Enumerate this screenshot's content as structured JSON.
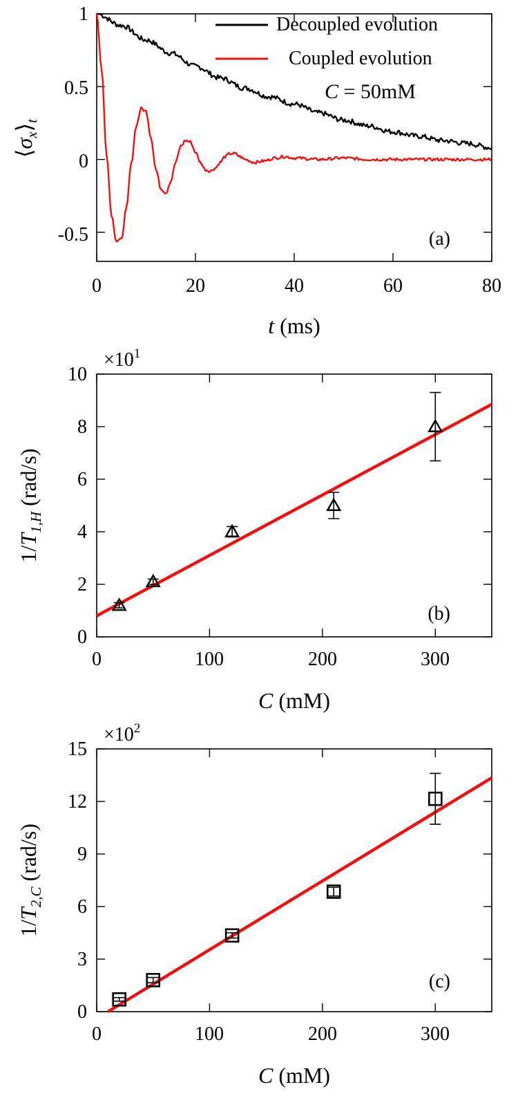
{
  "chart_data": [
    {
      "type": "line",
      "panel_label": "(a)",
      "xlabel_var": "t",
      "xlabel_unit": "(ms)",
      "ylabel_left": "⟨",
      "ylabel_var": "σ",
      "ylabel_sub": "x",
      "ylabel_right": "⟩",
      "ylabel_sub2": "t",
      "xlim": [
        0,
        80
      ],
      "ylim": [
        -0.7,
        1.0
      ],
      "xticks": [
        0,
        20,
        40,
        60,
        80
      ],
      "yticks": [
        -0.5,
        0,
        0.5,
        1
      ],
      "ytick_labels": [
        "-0.5",
        "0",
        "0.5",
        "1"
      ],
      "annotation_var": "C",
      "annotation_value": " = 50mM",
      "legend_position": "top-right",
      "series": [
        {
          "name": "Decoupled evolution",
          "color": "#000000",
          "x": [
            0,
            5,
            10,
            15,
            20,
            25,
            30,
            35,
            40,
            45,
            50,
            55,
            60,
            65,
            70,
            75,
            80
          ],
          "y": [
            1.0,
            0.92,
            0.82,
            0.73,
            0.64,
            0.56,
            0.49,
            0.43,
            0.38,
            0.32,
            0.27,
            0.23,
            0.19,
            0.16,
            0.13,
            0.11,
            0.08
          ]
        },
        {
          "name": "Coupled evolution",
          "color": "#ee1111",
          "x": [
            0,
            1,
            2,
            3,
            4,
            5,
            6,
            7,
            8,
            9,
            10,
            11,
            12,
            13,
            14,
            15,
            16,
            17,
            18,
            19,
            20,
            21,
            22,
            23,
            24,
            25,
            26,
            27,
            28,
            29,
            30,
            32,
            34,
            36,
            38,
            40,
            45,
            50,
            55,
            60,
            65,
            70,
            75,
            80
          ],
          "y": [
            1.0,
            0.62,
            0.04,
            -0.38,
            -0.56,
            -0.55,
            -0.34,
            -0.03,
            0.23,
            0.35,
            0.33,
            0.15,
            -0.07,
            -0.2,
            -0.23,
            -0.15,
            -0.02,
            0.09,
            0.13,
            0.12,
            0.05,
            -0.02,
            -0.07,
            -0.08,
            -0.06,
            -0.02,
            0.02,
            0.04,
            0.04,
            0.02,
            0.0,
            -0.02,
            -0.01,
            0.01,
            0.02,
            0.01,
            0.0,
            0.01,
            0.0,
            0.0,
            0.0,
            0.0,
            0.0,
            0.0
          ]
        }
      ]
    },
    {
      "type": "scatter",
      "panel_label": "(b)",
      "xlabel_var": "C",
      "xlabel_unit": "(mM)",
      "ylabel_prefix": "1/",
      "ylabel_var": "T",
      "ylabel_sub": "1,H",
      "ylabel_unit": "(rad/s)",
      "multiplier_base": "×10",
      "multiplier_exp": "1",
      "xlim": [
        0,
        350
      ],
      "ylim": [
        0,
        10
      ],
      "xticks": [
        0,
        100,
        200,
        300
      ],
      "yticks": [
        0,
        2,
        4,
        6,
        8,
        10
      ],
      "marker": "triangle",
      "points": {
        "x": [
          20,
          50,
          120,
          210,
          300
        ],
        "y": [
          1.2,
          2.1,
          4.0,
          5.0,
          8.0
        ],
        "error": [
          0.1,
          0.1,
          0.2,
          0.5,
          1.3
        ]
      },
      "fit": {
        "color": "#ee1111",
        "x": [
          0,
          350
        ],
        "y": [
          0.8,
          8.85
        ]
      }
    },
    {
      "type": "scatter",
      "panel_label": "(c)",
      "xlabel_var": "C",
      "xlabel_unit": "(mM)",
      "ylabel_prefix": "1/",
      "ylabel_var": "T",
      "ylabel_sub": "2,C",
      "ylabel_unit": "(rad/s)",
      "multiplier_base": "×10",
      "multiplier_exp": "2",
      "xlim": [
        0,
        350
      ],
      "ylim": [
        0,
        15
      ],
      "xticks": [
        0,
        100,
        200,
        300
      ],
      "yticks": [
        0,
        3,
        6,
        9,
        12,
        15
      ],
      "marker": "square",
      "points": {
        "x": [
          20,
          50,
          120,
          210,
          300
        ],
        "y": [
          0.7,
          1.8,
          4.35,
          6.85,
          12.15
        ],
        "error": [
          0.1,
          0.15,
          0.15,
          0.25,
          1.45
        ]
      },
      "fit": {
        "color": "#ee1111",
        "x": [
          10,
          350
        ],
        "y": [
          0.0,
          13.35
        ]
      }
    }
  ]
}
